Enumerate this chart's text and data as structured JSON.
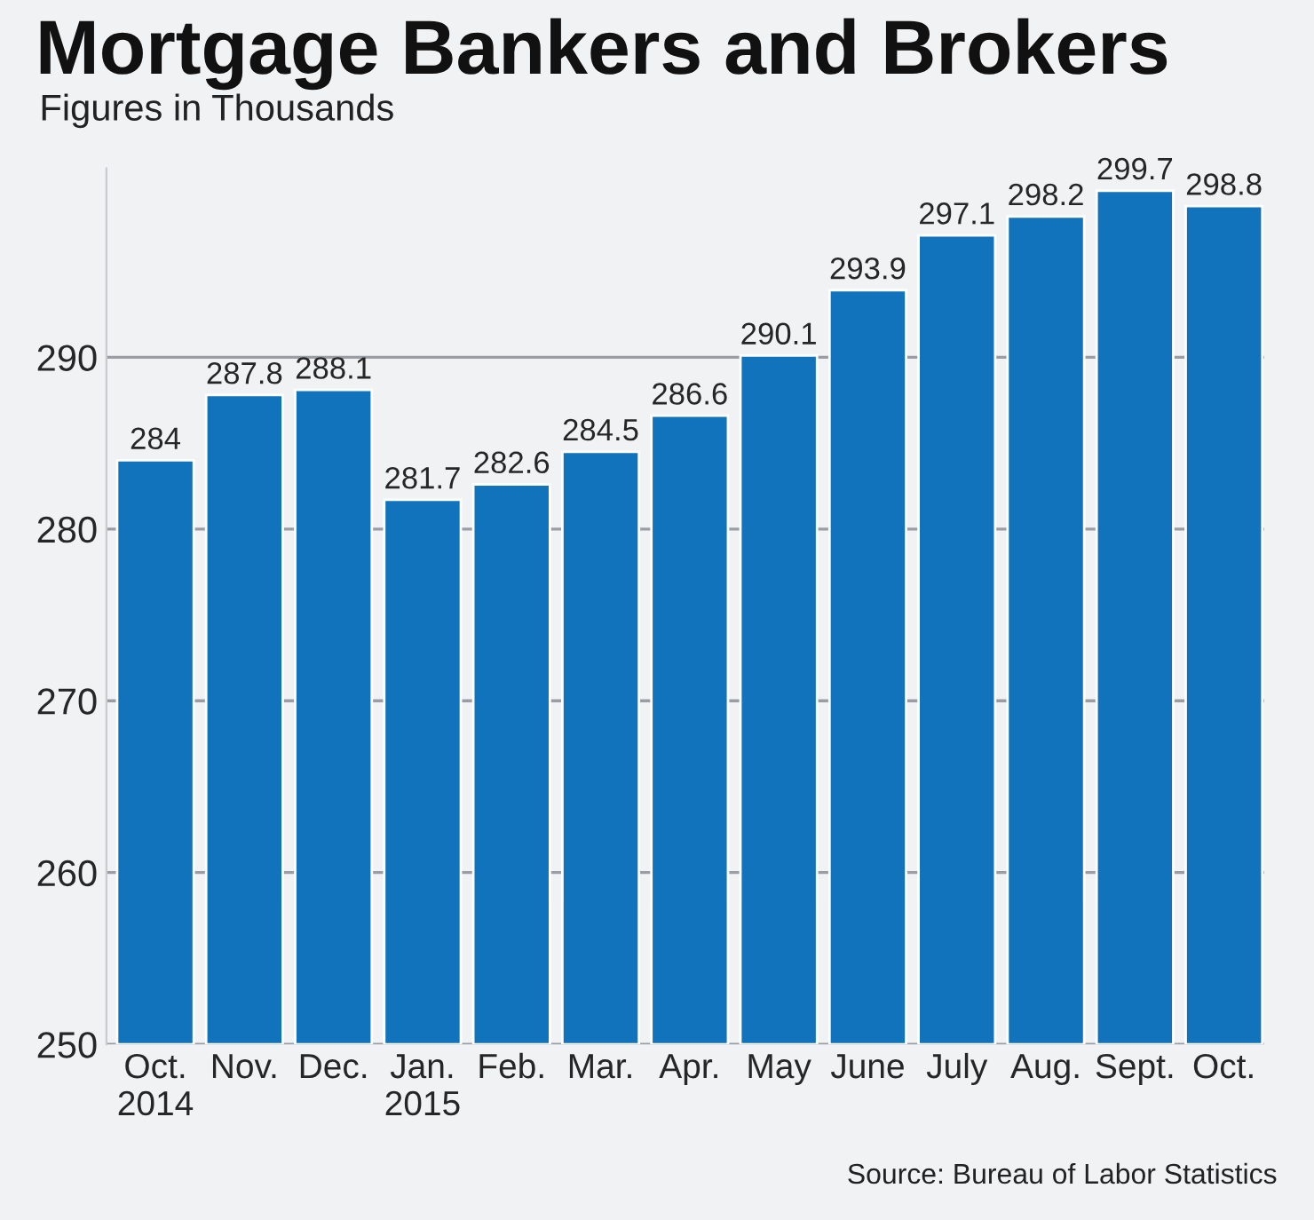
{
  "chart_data": {
    "type": "bar",
    "title": "Mortgage Bankers and Brokers",
    "subtitle": "Figures in Thousands",
    "categories": [
      "Oct.\n2014",
      "Nov.",
      "Dec.",
      "Jan.\n2015",
      "Feb.",
      "Mar.",
      "Apr.",
      "May",
      "June",
      "July",
      "Aug.",
      "Sept.",
      "Oct."
    ],
    "values": [
      284,
      287.8,
      288.1,
      281.7,
      282.6,
      284.5,
      286.6,
      290.1,
      293.9,
      297.1,
      298.2,
      299.7,
      298.8
    ],
    "color": "#1173bb",
    "ylim": [
      250,
      301
    ],
    "yticks": [
      250,
      260,
      270,
      280,
      290
    ],
    "grid": "y",
    "data_labels": true,
    "annotations": [
      "Source: Bureau of Labor Statistics"
    ]
  }
}
